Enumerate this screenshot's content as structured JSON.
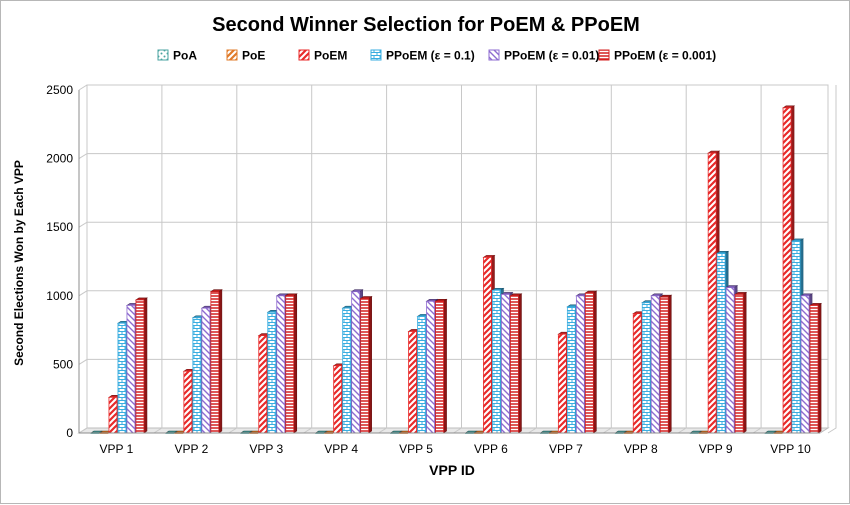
{
  "chart_data": {
    "type": "bar",
    "title": "Second Winner Selection for PoEM & PPoEM",
    "xlabel": "VPP ID",
    "ylabel": "Second Elections Won by Each VPP",
    "ylim": [
      0,
      2500
    ],
    "yticks": [
      "0",
      "500",
      "1000",
      "1500",
      "2000",
      "2500"
    ],
    "grid": true,
    "legend_position": "top",
    "categories": [
      "VPP 1",
      "VPP 2",
      "VPP 3",
      "VPP 4",
      "VPP 5",
      "VPP 6",
      "VPP 7",
      "VPP 8",
      "VPP 9",
      "VPP 10"
    ],
    "series": [
      {
        "name": "PoA",
        "color": "#4aa3a0",
        "pattern": "dots",
        "values": [
          0,
          0,
          0,
          0,
          0,
          0,
          0,
          0,
          0,
          0
        ]
      },
      {
        "name": "PoE",
        "color": "#e07b2a",
        "pattern": "diagonal",
        "values": [
          0,
          0,
          0,
          0,
          0,
          0,
          0,
          0,
          0,
          0
        ]
      },
      {
        "name": "PoEM",
        "color": "#e82a2a",
        "pattern": "diagonal",
        "values": [
          260,
          450,
          710,
          490,
          740,
          1280,
          720,
          870,
          2040,
          2370
        ]
      },
      {
        "name": "PPoEM (ε = 0.1)",
        "color": "#3aaee0",
        "pattern": "bricks",
        "values": [
          800,
          840,
          880,
          910,
          850,
          1040,
          920,
          950,
          1310,
          1400
        ]
      },
      {
        "name": "PPoEM (ε = 0.01)",
        "color": "#8e6bd0",
        "pattern": "diagonal-rev",
        "values": [
          930,
          910,
          1000,
          1030,
          960,
          1010,
          1000,
          1000,
          1060,
          1000
        ]
      },
      {
        "name": "PPoEM (ε = 0.001)",
        "color": "#d42020",
        "pattern": "hlines",
        "values": [
          970,
          1030,
          1000,
          980,
          960,
          1000,
          1020,
          990,
          1010,
          930
        ]
      }
    ]
  }
}
